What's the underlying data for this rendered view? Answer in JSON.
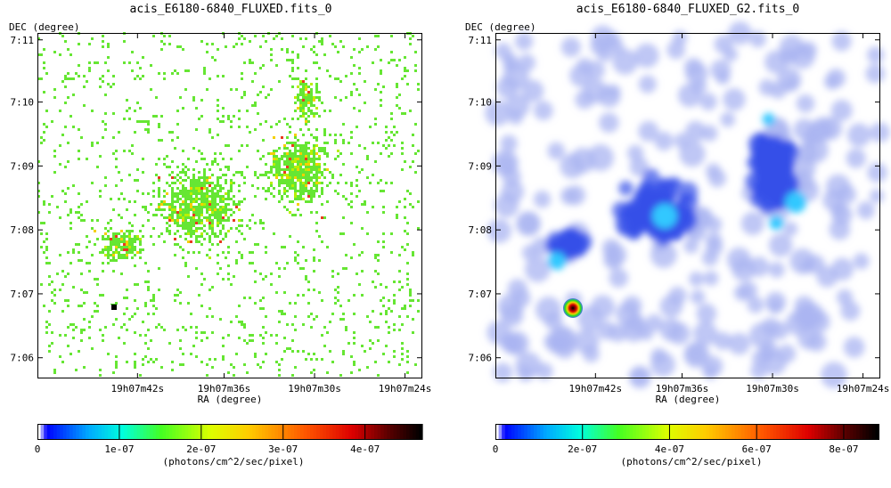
{
  "chart_data": [
    {
      "type": "heatmap",
      "title": "acis_E6180-6840_FLUXED.fits_0",
      "xlabel": "RA (degree)",
      "ylabel": "DEC (degree)",
      "x_ticks": [
        "19h07m42s",
        "19h07m36s",
        "19h07m30s",
        "19h07m24s"
      ],
      "y_ticks": [
        "7:11",
        "7:10",
        "7:09",
        "7:08",
        "7:07",
        "7:06"
      ],
      "colorbar": {
        "label": "(photons/cm^2/sec/pixel)",
        "ticks": [
          "0",
          "1e-07",
          "2e-07",
          "3e-07",
          "4e-07"
        ],
        "tick_values": [
          0,
          1e-07,
          2e-07,
          3e-07,
          4e-07
        ],
        "range": [
          0,
          4.7e-07
        ]
      },
      "colors": {
        "dominant": "#66e633",
        "frame": "#000000"
      }
    },
    {
      "type": "heatmap",
      "title": "acis_E6180-6840_FLUXED_G2.fits_0",
      "xlabel": "RA (degree)",
      "ylabel": "DEC (degree)",
      "x_ticks": [
        "19h07m42s",
        "19h07m36s",
        "19h07m30s",
        "19h07m24s"
      ],
      "y_ticks": [
        "7:11",
        "7:10",
        "7:09",
        "7:08",
        "7:07",
        "7:06"
      ],
      "colorbar": {
        "label": "(photons/cm^2/sec/pixel)",
        "ticks": [
          "0",
          "2e-07",
          "4e-07",
          "6e-07",
          "8e-07"
        ],
        "tick_values": [
          0,
          2e-07,
          4e-07,
          6e-07,
          8e-07
        ],
        "range": [
          0,
          8.8e-07
        ]
      },
      "colors": {
        "dominant": "#8c9ef0",
        "frame": "#000000"
      }
    }
  ]
}
